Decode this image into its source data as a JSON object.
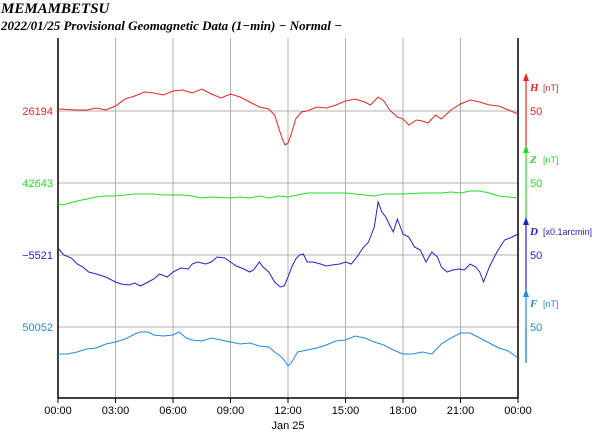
{
  "header": {
    "station": "MEMAMBETSU",
    "subtitle": "2022/01/25  Provisional Geomagnetic Data (1−min)  − Normal −"
  },
  "chart_data": {
    "type": "line",
    "date_label": "Jan 25",
    "x_ticks": [
      "00:00",
      "03:00",
      "06:00",
      "09:00",
      "12:00",
      "15:00",
      "18:00",
      "21:00",
      "00:00"
    ],
    "x_range_hours": [
      0,
      24
    ],
    "grid": true,
    "series": [
      {
        "name": "H",
        "unit": "[nT]",
        "scale_label": "50",
        "base_label": "26194",
        "color": "#ee2222",
        "points": [
          [
            0,
            32
          ],
          [
            0.5,
            32.5
          ],
          [
            1,
            33
          ],
          [
            1.5,
            33
          ],
          [
            2,
            31
          ],
          [
            2.5,
            33
          ],
          [
            3,
            29
          ],
          [
            3.5,
            22
          ],
          [
            4,
            19
          ],
          [
            4.5,
            15
          ],
          [
            5,
            16
          ],
          [
            5.5,
            18
          ],
          [
            6,
            14
          ],
          [
            6.5,
            13
          ],
          [
            7,
            16
          ],
          [
            7.5,
            12
          ],
          [
            8,
            17
          ],
          [
            8.5,
            21
          ],
          [
            9,
            17
          ],
          [
            9.5,
            20
          ],
          [
            10,
            25
          ],
          [
            10.5,
            30
          ],
          [
            11,
            32
          ],
          [
            11.3,
            38
          ],
          [
            11.5,
            50
          ],
          [
            11.7,
            62
          ],
          [
            11.85,
            68
          ],
          [
            12,
            66
          ],
          [
            12.15,
            58
          ],
          [
            12.4,
            42
          ],
          [
            12.7,
            35
          ],
          [
            13,
            34
          ],
          [
            13.5,
            30
          ],
          [
            14,
            31
          ],
          [
            14.5,
            28
          ],
          [
            15,
            24
          ],
          [
            15.5,
            22
          ],
          [
            16,
            25
          ],
          [
            16.3,
            28
          ],
          [
            16.7,
            20
          ],
          [
            17,
            24
          ],
          [
            17.3,
            33
          ],
          [
            17.7,
            40
          ],
          [
            18,
            42
          ],
          [
            18.3,
            48
          ],
          [
            18.7,
            43
          ],
          [
            19,
            44
          ],
          [
            19.3,
            46
          ],
          [
            19.7,
            38
          ],
          [
            20,
            42
          ],
          [
            20.5,
            33
          ],
          [
            21,
            27
          ],
          [
            21.5,
            23
          ],
          [
            22,
            25
          ],
          [
            22.5,
            28
          ],
          [
            23,
            29
          ],
          [
            23.5,
            33
          ],
          [
            24,
            37
          ]
        ]
      },
      {
        "name": "Z",
        "unit": "[nT]",
        "scale_label": "50",
        "base_label": "42643",
        "color": "#22dd22",
        "points": [
          [
            0,
            43
          ],
          [
            0.3,
            44
          ],
          [
            0.6,
            42
          ],
          [
            1,
            40
          ],
          [
            1.5,
            38
          ],
          [
            2,
            36
          ],
          [
            2.5,
            35
          ],
          [
            3,
            35
          ],
          [
            3.5,
            34
          ],
          [
            4,
            33
          ],
          [
            5,
            33
          ],
          [
            5.5,
            34
          ],
          [
            6,
            34
          ],
          [
            6.5,
            34
          ],
          [
            7,
            35
          ],
          [
            7.5,
            37
          ],
          [
            8,
            36
          ],
          [
            9,
            37
          ],
          [
            9.5,
            36
          ],
          [
            10,
            37
          ],
          [
            10.5,
            35
          ],
          [
            11,
            37
          ],
          [
            11.5,
            35
          ],
          [
            12,
            36
          ],
          [
            12.5,
            34
          ],
          [
            13,
            32
          ],
          [
            14,
            32
          ],
          [
            15,
            32
          ],
          [
            15.5,
            33
          ],
          [
            16,
            34
          ],
          [
            16.5,
            35
          ],
          [
            17,
            33
          ],
          [
            18,
            33
          ],
          [
            19,
            32
          ],
          [
            20,
            32
          ],
          [
            20.5,
            31
          ],
          [
            21,
            32
          ],
          [
            21.5,
            30
          ],
          [
            22,
            30
          ],
          [
            22.5,
            32
          ],
          [
            23,
            35
          ],
          [
            23.5,
            36
          ],
          [
            24,
            37
          ]
        ]
      },
      {
        "name": "D",
        "unit": "[x0.1arcmin]",
        "scale_label": "50",
        "base_label": "−5521",
        "color": "#2222cc",
        "points": [
          [
            0,
            26
          ],
          [
            0.3,
            33
          ],
          [
            0.7,
            36
          ],
          [
            1,
            42
          ],
          [
            1.3,
            45
          ],
          [
            1.6,
            50
          ],
          [
            2,
            52
          ],
          [
            2.5,
            55
          ],
          [
            3,
            60
          ],
          [
            3.3,
            62
          ],
          [
            3.7,
            63
          ],
          [
            4,
            61
          ],
          [
            4.3,
            64
          ],
          [
            4.7,
            60
          ],
          [
            5,
            57
          ],
          [
            5.3,
            52
          ],
          [
            5.7,
            55
          ],
          [
            6,
            50
          ],
          [
            6.4,
            46
          ],
          [
            6.8,
            47
          ],
          [
            7,
            42
          ],
          [
            7.3,
            40
          ],
          [
            7.7,
            42
          ],
          [
            8,
            40
          ],
          [
            8.3,
            35
          ],
          [
            8.7,
            36
          ],
          [
            9,
            40
          ],
          [
            9.3,
            44
          ],
          [
            9.7,
            47
          ],
          [
            10,
            50
          ],
          [
            10.2,
            48
          ],
          [
            10.5,
            40
          ],
          [
            10.7,
            45
          ],
          [
            11,
            50
          ],
          [
            11.3,
            60
          ],
          [
            11.6,
            65
          ],
          [
            11.8,
            64
          ],
          [
            12,
            55
          ],
          [
            12.2,
            45
          ],
          [
            12.4,
            37
          ],
          [
            12.6,
            33
          ],
          [
            12.8,
            32
          ],
          [
            13,
            40
          ],
          [
            13.3,
            40
          ],
          [
            13.7,
            42
          ],
          [
            14,
            44
          ],
          [
            14.3,
            43
          ],
          [
            14.7,
            42
          ],
          [
            15,
            40
          ],
          [
            15.3,
            42
          ],
          [
            15.6,
            35
          ],
          [
            15.9,
            26
          ],
          [
            16.2,
            20
          ],
          [
            16.5,
            5
          ],
          [
            16.7,
            -20
          ],
          [
            16.9,
            -10
          ],
          [
            17.1,
            -5
          ],
          [
            17.3,
            3
          ],
          [
            17.5,
            10
          ],
          [
            17.7,
            -3
          ],
          [
            18,
            12
          ],
          [
            18.3,
            15
          ],
          [
            18.6,
            25
          ],
          [
            18.9,
            28
          ],
          [
            19.2,
            40
          ],
          [
            19.5,
            30
          ],
          [
            19.8,
            35
          ],
          [
            20,
            45
          ],
          [
            20.3,
            50
          ],
          [
            20.6,
            48
          ],
          [
            20.9,
            47
          ],
          [
            21.2,
            48
          ],
          [
            21.5,
            42
          ],
          [
            21.8,
            45
          ],
          [
            22,
            50
          ],
          [
            22.2,
            60
          ],
          [
            22.5,
            45
          ],
          [
            22.9,
            30
          ],
          [
            23.3,
            18
          ],
          [
            23.7,
            15
          ],
          [
            24,
            12
          ]
        ]
      },
      {
        "name": "F",
        "unit": "[nT]",
        "scale_label": "50",
        "base_label": "50052",
        "color": "#2288dd",
        "points": [
          [
            0,
            66
          ],
          [
            0.5,
            66
          ],
          [
            1,
            64
          ],
          [
            1.5,
            61
          ],
          [
            2,
            60
          ],
          [
            2.5,
            56
          ],
          [
            3,
            54
          ],
          [
            3.5,
            51
          ],
          [
            4,
            46
          ],
          [
            4.3,
            44
          ],
          [
            4.7,
            44
          ],
          [
            5,
            47
          ],
          [
            5.5,
            48
          ],
          [
            6,
            47
          ],
          [
            6.3,
            44
          ],
          [
            6.7,
            50
          ],
          [
            7,
            52
          ],
          [
            7.5,
            53
          ],
          [
            8,
            50
          ],
          [
            8.5,
            52
          ],
          [
            9,
            54
          ],
          [
            9.5,
            56
          ],
          [
            10,
            55
          ],
          [
            10.5,
            58
          ],
          [
            11,
            59
          ],
          [
            11.3,
            64
          ],
          [
            11.6,
            68
          ],
          [
            11.8,
            72
          ],
          [
            12,
            78
          ],
          [
            12.2,
            74
          ],
          [
            12.5,
            64
          ],
          [
            13,
            62
          ],
          [
            13.5,
            60
          ],
          [
            14,
            57
          ],
          [
            14.5,
            53
          ],
          [
            15,
            52
          ],
          [
            15.5,
            48
          ],
          [
            16,
            50
          ],
          [
            16.5,
            54
          ],
          [
            17,
            57
          ],
          [
            17.5,
            62
          ],
          [
            18,
            66
          ],
          [
            18.5,
            66
          ],
          [
            19,
            64
          ],
          [
            19.5,
            66
          ],
          [
            20,
            56
          ],
          [
            20.5,
            50
          ],
          [
            21,
            45
          ],
          [
            21.5,
            45
          ],
          [
            22,
            50
          ],
          [
            22.5,
            55
          ],
          [
            23,
            60
          ],
          [
            23.5,
            63
          ],
          [
            24,
            70
          ]
        ]
      }
    ]
  }
}
